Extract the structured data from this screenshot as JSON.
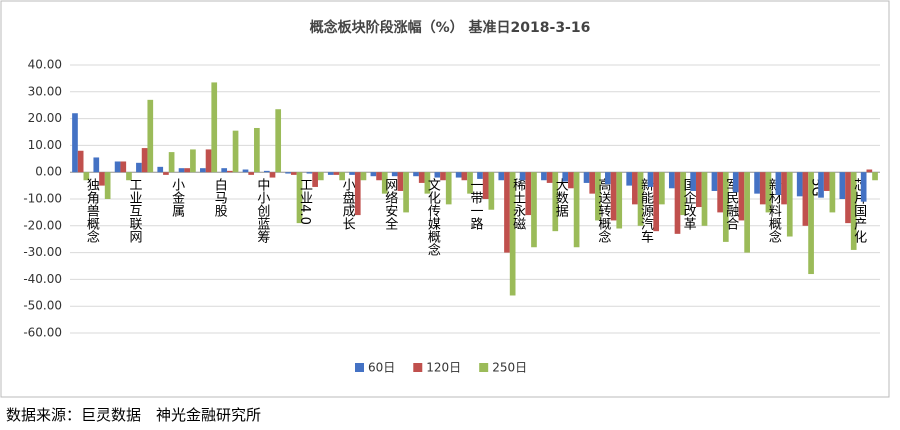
{
  "chart_data": {
    "type": "bar",
    "title": "概念板块阶段涨幅（%） 基准日2018-3-16",
    "categories": [
      "独角兽概念",
      null,
      "工业互联网",
      null,
      "小金属",
      null,
      "白马股",
      null,
      "中小创蓝筹",
      null,
      "工业4.0",
      null,
      "小盘成长",
      null,
      "网络安全",
      null,
      "文化传媒概念",
      null,
      "一带一路",
      null,
      "稀土永磁",
      null,
      "大数据",
      null,
      "高送转概念",
      null,
      "新能源汽车",
      null,
      "国企改革",
      null,
      "军民融合",
      null,
      "新材料概念",
      null,
      "5G",
      null,
      "芯片国产化",
      null
    ],
    "series": [
      {
        "name": "60日",
        "color": "#4472c4",
        "values": [
          22,
          5.5,
          4,
          3.5,
          2,
          1.5,
          1.5,
          1.5,
          1,
          0.5,
          -0.5,
          -0.5,
          -1,
          -1,
          -1.5,
          -1.5,
          -1.5,
          -2,
          -2,
          -2.5,
          -3,
          -3,
          -3,
          -3.5,
          -4,
          -4.5,
          -5,
          -5.5,
          -6,
          -7,
          -7,
          -7.5,
          -8,
          -8.5,
          -9,
          -9.5,
          -10,
          -11
        ]
      },
      {
        "name": "120日",
        "color": "#c0504d",
        "values": [
          8,
          -5,
          4,
          9,
          -1,
          1.5,
          8.5,
          0.5,
          -1,
          -2,
          -1,
          -5.5,
          -1,
          -16,
          -3,
          -7,
          -4,
          -3,
          -3,
          -10,
          -30,
          -16,
          -4,
          -6,
          -8,
          -18,
          -12,
          -22,
          -23,
          -13,
          -15,
          -18,
          -12,
          -12,
          -20,
          -7,
          -19,
          1
        ]
      },
      {
        "name": "250日",
        "color": "#9bbb59",
        "values": [
          -3,
          -10,
          -3,
          27,
          7.5,
          8.5,
          33.5,
          15.5,
          16.5,
          23.5,
          -19,
          -3,
          -3,
          -3,
          -8,
          -15,
          -8,
          -12,
          -8,
          -14,
          -46,
          -28,
          -22,
          -28,
          -18,
          -21,
          -20,
          -12,
          -16,
          -20,
          -26,
          -30,
          -15,
          -24,
          -38,
          -15,
          -29,
          -3
        ]
      }
    ],
    "ylim": [
      -60,
      40
    ],
    "yticks": [
      {
        "value": -60,
        "label": "-60.00"
      },
      {
        "value": -50,
        "label": "-50.00"
      },
      {
        "value": -40,
        "label": "-40.00"
      },
      {
        "value": -30,
        "label": "-30.00"
      },
      {
        "value": -20,
        "label": "-20.00"
      },
      {
        "value": -10,
        "label": "-10.00"
      },
      {
        "value": 0,
        "label": "0.00"
      },
      {
        "value": 10,
        "label": "10.00"
      },
      {
        "value": 20,
        "label": "20.00"
      },
      {
        "value": 30,
        "label": "30.00"
      },
      {
        "value": 40,
        "label": "40.00"
      }
    ],
    "grid": true
  },
  "source": "数据来源：巨灵数据　神光金融研究所"
}
